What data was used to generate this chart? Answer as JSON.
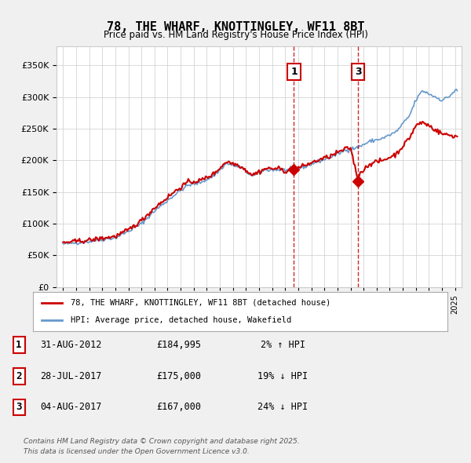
{
  "title": "78, THE WHARF, KNOTTINGLEY, WF11 8BT",
  "subtitle": "Price paid vs. HM Land Registry's House Price Index (HPI)",
  "legend_line1": "78, THE WHARF, KNOTTINGLEY, WF11 8BT (detached house)",
  "legend_line2": "HPI: Average price, detached house, Wakefield",
  "footer1": "Contains HM Land Registry data © Crown copyright and database right 2025.",
  "footer2": "This data is licensed under the Open Government Licence v3.0.",
  "annotations": [
    {
      "num": 1,
      "date": "31-AUG-2012",
      "price": "£184,995",
      "pct": "2%",
      "dir": "↑",
      "label": "HPI"
    },
    {
      "num": 2,
      "date": "28-JUL-2017",
      "price": "£175,000",
      "pct": "19%",
      "dir": "↓",
      "label": "HPI"
    },
    {
      "num": 3,
      "date": "04-AUG-2017",
      "price": "£167,000",
      "pct": "24%",
      "dir": "↓",
      "label": "HPI"
    }
  ],
  "vline1_x": 2012.67,
  "vline3_x": 2017.59,
  "marker1_y": 184995,
  "marker2_y": 175000,
  "marker3_y": 167000,
  "red_color": "#cc0000",
  "blue_color": "#6699cc",
  "background_color": "#f0f0f0",
  "plot_bg_color": "#ffffff",
  "ylim": [
    0,
    380000
  ],
  "yticks": [
    0,
    50000,
    100000,
    150000,
    200000,
    250000,
    300000,
    350000
  ],
  "xlim": [
    1994.5,
    2025.5
  ],
  "xticks": [
    1995,
    1996,
    1997,
    1998,
    1999,
    2000,
    2001,
    2002,
    2003,
    2004,
    2005,
    2006,
    2007,
    2008,
    2009,
    2010,
    2011,
    2012,
    2013,
    2014,
    2015,
    2016,
    2017,
    2018,
    2019,
    2020,
    2021,
    2022,
    2023,
    2024,
    2025
  ]
}
